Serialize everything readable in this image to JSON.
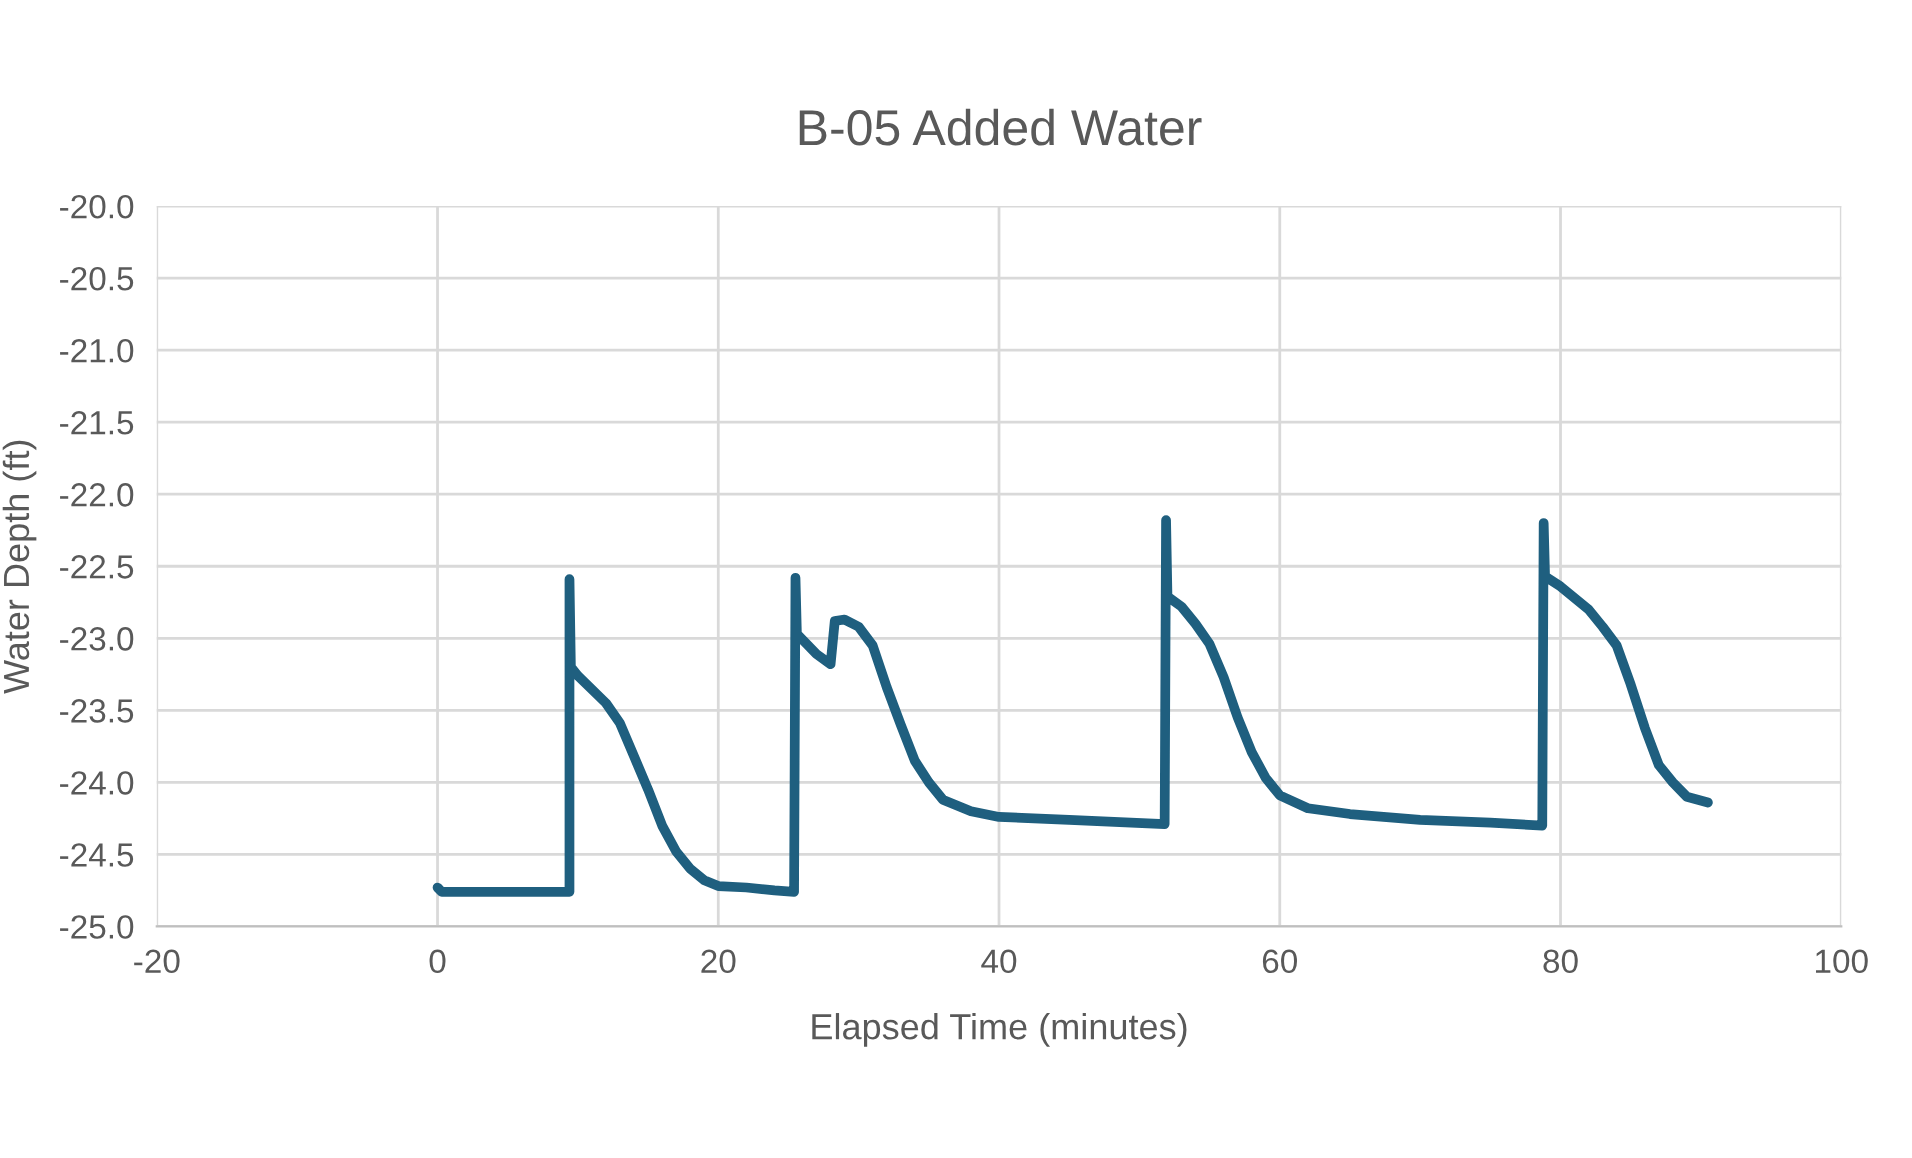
{
  "chart_data": {
    "type": "line",
    "title": "B-05 Added Water",
    "xlabel": "Elapsed Time (minutes)",
    "ylabel": "Water Depth (ft)",
    "xlim": [
      -20,
      100
    ],
    "xticks": [
      -20,
      0,
      20,
      40,
      60,
      80,
      100
    ],
    "ylim": [
      -25,
      -20
    ],
    "yticks": [
      {
        "value": -25,
        "label": "-25.0"
      },
      {
        "value": -24.5,
        "label": "-24.5"
      },
      {
        "value": -24,
        "label": "-24.0"
      },
      {
        "value": -23.5,
        "label": "-23.5"
      },
      {
        "value": -23,
        "label": "-23.0"
      },
      {
        "value": -22.5,
        "label": "-22.5"
      },
      {
        "value": -22,
        "label": "-22.0"
      },
      {
        "value": -21.5,
        "label": "-21.5"
      },
      {
        "value": -21,
        "label": "-21.0"
      },
      {
        "value": -20.5,
        "label": "-20.5"
      },
      {
        "value": -20,
        "label": "-20.0"
      }
    ],
    "grid": true,
    "legend": false,
    "marker": "none",
    "line_style": "solid",
    "series": [
      {
        "color": "#1f5f7f",
        "x": [
          0,
          0.3,
          9.4,
          9.4,
          9.5,
          10,
          12,
          13,
          14,
          15,
          16,
          17,
          18,
          19,
          20,
          22,
          24,
          25.4,
          25.5,
          25.6,
          27,
          28,
          28.3,
          29,
          30,
          31,
          32,
          33,
          34,
          35,
          36,
          38,
          40,
          45,
          51.8,
          51.9,
          52,
          53,
          54,
          55,
          56,
          57,
          58,
          59,
          60,
          62,
          65,
          70,
          75,
          78.7,
          78.8,
          78.9,
          80,
          81,
          82,
          83,
          84,
          85,
          86,
          87,
          88,
          89,
          90.5
        ],
        "values": [
          -24.73,
          -24.76,
          -24.76,
          -22.59,
          -23.2,
          -23.26,
          -23.45,
          -23.59,
          -23.82,
          -24.05,
          -24.3,
          -24.48,
          -24.6,
          -24.68,
          -24.72,
          -24.73,
          -24.75,
          -24.76,
          -22.58,
          -22.97,
          -23.11,
          -23.18,
          -22.88,
          -22.87,
          -22.92,
          -23.05,
          -23.34,
          -23.6,
          -23.85,
          -24.0,
          -24.12,
          -24.2,
          -24.24,
          -24.26,
          -24.29,
          -22.18,
          -22.71,
          -22.78,
          -22.9,
          -23.04,
          -23.27,
          -23.55,
          -23.79,
          -23.97,
          -24.09,
          -24.18,
          -24.22,
          -24.26,
          -24.28,
          -24.3,
          -22.2,
          -22.57,
          -22.64,
          -22.72,
          -22.8,
          -22.92,
          -23.05,
          -23.32,
          -23.62,
          -23.88,
          -24.0,
          -24.1,
          -24.14
        ]
      }
    ]
  }
}
